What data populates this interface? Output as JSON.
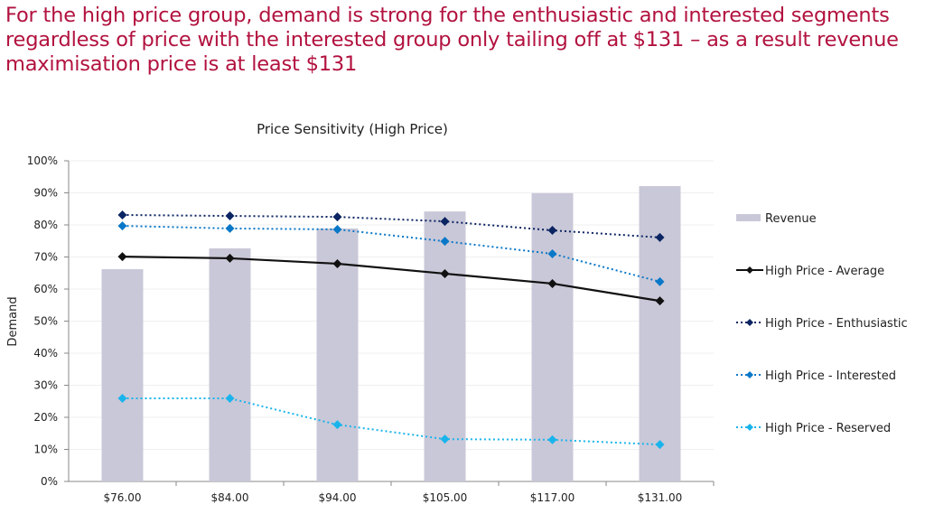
{
  "headline": "For the high price group, demand is strong for the enthusiastic and interested segments regardless of price with the interested group only tailing off at $131 – as a result revenue maximisation price is at least $131",
  "chart_data": {
    "type": "bar+line",
    "title": "Price Sensitivity (High Price)",
    "xlabel": "",
    "ylabel": "Demand",
    "ylim": [
      0,
      100
    ],
    "yticks": [
      "0%",
      "10%",
      "20%",
      "30%",
      "40%",
      "50%",
      "60%",
      "70%",
      "80%",
      "90%",
      "100%"
    ],
    "grid": true,
    "legend_position": "right",
    "categories": [
      "$76.00",
      "$84.00",
      "$94.00",
      "$105.00",
      "$117.00",
      "$131.00"
    ],
    "bars": {
      "name": "Revenue",
      "color": "#c9c8d8",
      "values": [
        66.2,
        72.7,
        78.9,
        84.2,
        89.9,
        92.1
      ]
    },
    "series": [
      {
        "name": "High Price - Average",
        "color": "#111111",
        "style": "solid",
        "values": [
          70.1,
          69.6,
          67.9,
          64.8,
          61.7,
          56.3
        ]
      },
      {
        "name": "High Price - Enthusiastic",
        "color": "#0b2462",
        "style": "dotted",
        "values": [
          83.1,
          82.8,
          82.5,
          81.1,
          78.3,
          76.1
        ]
      },
      {
        "name": "High Price - Interested",
        "color": "#0a78c8",
        "style": "dotted",
        "values": [
          79.7,
          78.9,
          78.6,
          74.9,
          71.0,
          62.3
        ]
      },
      {
        "name": "High Price - Reserved",
        "color": "#1ab4ec",
        "style": "dotted",
        "values": [
          25.9,
          25.9,
          17.7,
          13.2,
          13.0,
          11.5
        ]
      }
    ]
  }
}
